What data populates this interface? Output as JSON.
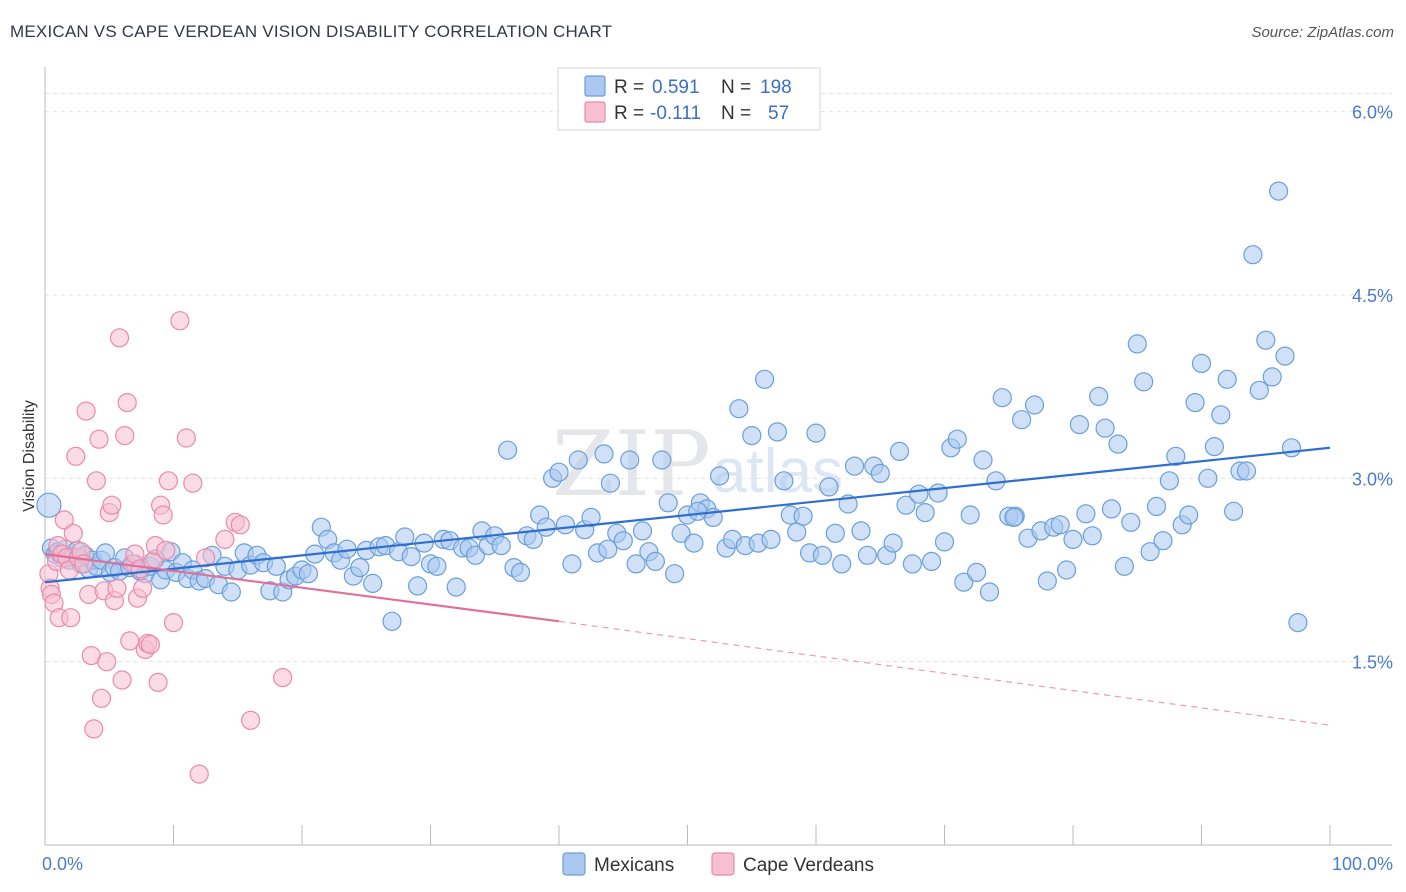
{
  "title": "MEXICAN VS CAPE VERDEAN VISION DISABILITY CORRELATION CHART",
  "source": "Source: ZipAtlas.com",
  "watermark": {
    "zip": "ZIP",
    "atlas": "atlas"
  },
  "colors": {
    "blue_fill": "#aac8f0",
    "blue_stroke": "#6a9fd9",
    "blue_line": "#2e6fcf",
    "pink_fill": "#f7bfd2",
    "pink_stroke": "#e98aa9",
    "pink_line": "#e0709a",
    "tick_text": "#4a7cc9",
    "grid": "#e2e2e2"
  },
  "legend": {
    "rows": [
      {
        "r_label": "R =",
        "r_value": "0.591",
        "n_label": "N =",
        "n_value": "198"
      },
      {
        "r_label": "R =",
        "r_value": "-0.111",
        "n_label": "N =",
        "n_value": "57"
      }
    ]
  },
  "bottom_legend": [
    "Mexicans",
    "Cape Verdeans"
  ],
  "chart_data": {
    "type": "scatter",
    "title": "MEXICAN VS CAPE VERDEAN VISION DISABILITY CORRELATION CHART",
    "xlabel": "",
    "ylabel": "Vision Disability",
    "xlim": [
      0,
      100
    ],
    "ylim": [
      0.0,
      6.3
    ],
    "x_tick_labels": [
      {
        "value": 0,
        "label": "0.0%"
      },
      {
        "value": 100,
        "label": "100.0%"
      }
    ],
    "y_ticks": [
      {
        "value": 1.5,
        "label": "1.5%"
      },
      {
        "value": 3.0,
        "label": "3.0%"
      },
      {
        "value": 4.5,
        "label": "4.5%"
      },
      {
        "value": 6.0,
        "label": "6.0%"
      }
    ],
    "grid": true,
    "legend_position": "top-center",
    "series": [
      {
        "name": "Mexicans",
        "R": 0.591,
        "N": 198,
        "trend": {
          "x": [
            0,
            100
          ],
          "y": [
            2.15,
            3.25
          ],
          "style": "solid"
        },
        "points": [
          [
            0.3,
            2.78
          ],
          [
            0.5,
            2.43
          ],
          [
            0.8,
            2.38
          ],
          [
            1.0,
            2.4
          ],
          [
            1.3,
            2.35
          ],
          [
            1.6,
            2.42
          ],
          [
            1.9,
            2.33
          ],
          [
            2.2,
            2.36
          ],
          [
            2.5,
            2.41
          ],
          [
            2.8,
            2.3
          ],
          [
            3.1,
            2.37
          ],
          [
            3.4,
            2.26
          ],
          [
            3.7,
            2.33
          ],
          [
            4.0,
            2.28
          ],
          [
            4.4,
            2.33
          ],
          [
            4.7,
            2.39
          ],
          [
            5.1,
            2.23
          ],
          [
            5.4,
            2.27
          ],
          [
            5.8,
            2.24
          ],
          [
            6.2,
            2.35
          ],
          [
            6.6,
            2.27
          ],
          [
            7.0,
            2.3
          ],
          [
            7.4,
            2.24
          ],
          [
            7.8,
            2.22
          ],
          [
            8.2,
            2.28
          ],
          [
            8.6,
            2.34
          ],
          [
            9.0,
            2.17
          ],
          [
            9.4,
            2.25
          ],
          [
            9.8,
            2.4
          ],
          [
            10.2,
            2.23
          ],
          [
            10.7,
            2.31
          ],
          [
            11.1,
            2.18
          ],
          [
            11.5,
            2.25
          ],
          [
            12.0,
            2.16
          ],
          [
            12.5,
            2.18
          ],
          [
            13.0,
            2.37
          ],
          [
            13.5,
            2.13
          ],
          [
            14.0,
            2.28
          ],
          [
            14.5,
            2.07
          ],
          [
            15.0,
            2.25
          ],
          [
            15.5,
            2.39
          ],
          [
            16.0,
            2.29
          ],
          [
            16.5,
            2.37
          ],
          [
            17.0,
            2.31
          ],
          [
            17.5,
            2.08
          ],
          [
            18.0,
            2.28
          ],
          [
            18.5,
            2.07
          ],
          [
            19.0,
            2.17
          ],
          [
            19.5,
            2.2
          ],
          [
            20.0,
            2.25
          ],
          [
            20.5,
            2.22
          ],
          [
            21.0,
            2.38
          ],
          [
            21.5,
            2.6
          ],
          [
            22.0,
            2.5
          ],
          [
            22.5,
            2.39
          ],
          [
            23.0,
            2.33
          ],
          [
            23.5,
            2.42
          ],
          [
            24.0,
            2.2
          ],
          [
            24.5,
            2.27
          ],
          [
            25.0,
            2.41
          ],
          [
            25.5,
            2.14
          ],
          [
            26.0,
            2.44
          ],
          [
            26.5,
            2.45
          ],
          [
            27.0,
            1.83
          ],
          [
            27.5,
            2.4
          ],
          [
            28.0,
            2.52
          ],
          [
            28.5,
            2.36
          ],
          [
            29.0,
            2.12
          ],
          [
            29.5,
            2.47
          ],
          [
            30.0,
            2.3
          ],
          [
            30.5,
            2.28
          ],
          [
            31.0,
            2.5
          ],
          [
            31.5,
            2.49
          ],
          [
            32.0,
            2.11
          ],
          [
            32.5,
            2.43
          ],
          [
            33.0,
            2.43
          ],
          [
            33.5,
            2.37
          ],
          [
            34.0,
            2.57
          ],
          [
            34.5,
            2.45
          ],
          [
            35.0,
            2.53
          ],
          [
            35.5,
            2.45
          ],
          [
            36.0,
            3.23
          ],
          [
            36.5,
            2.27
          ],
          [
            37.0,
            2.23
          ],
          [
            37.5,
            2.53
          ],
          [
            38.0,
            2.5
          ],
          [
            38.5,
            2.7
          ],
          [
            39.0,
            2.6
          ],
          [
            39.5,
            3.0
          ],
          [
            40.0,
            3.05
          ],
          [
            40.5,
            2.62
          ],
          [
            41.0,
            2.3
          ],
          [
            41.5,
            3.15
          ],
          [
            42.0,
            2.58
          ],
          [
            42.5,
            2.68
          ],
          [
            43.0,
            2.39
          ],
          [
            43.5,
            3.2
          ],
          [
            44.0,
            2.96
          ],
          [
            44.5,
            2.55
          ],
          [
            45.0,
            2.49
          ],
          [
            45.5,
            3.15
          ],
          [
            46.0,
            2.3
          ],
          [
            46.5,
            2.57
          ],
          [
            47.0,
            2.4
          ],
          [
            47.5,
            2.32
          ],
          [
            48.0,
            3.15
          ],
          [
            48.5,
            2.8
          ],
          [
            49.0,
            2.22
          ],
          [
            49.5,
            2.55
          ],
          [
            50.0,
            2.7
          ],
          [
            50.5,
            2.47
          ],
          [
            51.0,
            2.8
          ],
          [
            51.5,
            2.75
          ],
          [
            52.0,
            2.68
          ],
          [
            52.5,
            3.02
          ],
          [
            53.0,
            2.43
          ],
          [
            53.5,
            2.5
          ],
          [
            54.0,
            3.57
          ],
          [
            54.5,
            2.45
          ],
          [
            55.0,
            3.35
          ],
          [
            55.5,
            2.47
          ],
          [
            56.0,
            3.81
          ],
          [
            56.5,
            2.5
          ],
          [
            57.0,
            3.38
          ],
          [
            57.5,
            2.98
          ],
          [
            58.0,
            2.7
          ],
          [
            58.5,
            2.56
          ],
          [
            59.0,
            2.69
          ],
          [
            59.5,
            2.39
          ],
          [
            60.0,
            3.37
          ],
          [
            60.5,
            2.37
          ],
          [
            61.0,
            2.93
          ],
          [
            61.5,
            2.55
          ],
          [
            62.0,
            2.3
          ],
          [
            62.5,
            2.79
          ],
          [
            63.0,
            3.1
          ],
          [
            63.5,
            2.57
          ],
          [
            64.0,
            2.37
          ],
          [
            64.5,
            3.1
          ],
          [
            65.0,
            3.04
          ],
          [
            65.5,
            2.37
          ],
          [
            66.0,
            2.47
          ],
          [
            66.5,
            3.22
          ],
          [
            67.0,
            2.78
          ],
          [
            67.5,
            2.3
          ],
          [
            68.0,
            2.87
          ],
          [
            68.5,
            2.72
          ],
          [
            69.0,
            2.32
          ],
          [
            69.5,
            2.88
          ],
          [
            70.0,
            2.48
          ],
          [
            70.5,
            3.25
          ],
          [
            71.0,
            3.32
          ],
          [
            71.5,
            2.15
          ],
          [
            72.0,
            2.7
          ],
          [
            72.5,
            2.23
          ],
          [
            73.0,
            3.15
          ],
          [
            73.5,
            2.07
          ],
          [
            74.0,
            2.98
          ],
          [
            74.5,
            3.66
          ],
          [
            75.0,
            2.69
          ],
          [
            75.5,
            2.69
          ],
          [
            76.0,
            3.48
          ],
          [
            76.5,
            2.51
          ],
          [
            77.0,
            3.6
          ],
          [
            77.5,
            2.57
          ],
          [
            78.0,
            2.16
          ],
          [
            78.5,
            2.6
          ],
          [
            79.0,
            2.62
          ],
          [
            79.5,
            2.25
          ],
          [
            80.0,
            2.5
          ],
          [
            80.5,
            3.44
          ],
          [
            81.0,
            2.71
          ],
          [
            81.5,
            2.53
          ],
          [
            82.0,
            3.67
          ],
          [
            82.5,
            3.41
          ],
          [
            83.0,
            2.75
          ],
          [
            83.5,
            3.28
          ],
          [
            84.0,
            2.28
          ],
          [
            84.5,
            2.64
          ],
          [
            85.0,
            4.1
          ],
          [
            85.5,
            3.79
          ],
          [
            86.0,
            2.4
          ],
          [
            86.5,
            2.77
          ],
          [
            87.0,
            2.49
          ],
          [
            87.5,
            2.98
          ],
          [
            88.0,
            3.18
          ],
          [
            88.5,
            2.62
          ],
          [
            89.0,
            2.7
          ],
          [
            89.5,
            3.62
          ],
          [
            90.0,
            3.94
          ],
          [
            90.5,
            3.0
          ],
          [
            91.0,
            3.26
          ],
          [
            91.5,
            3.52
          ],
          [
            92.0,
            3.81
          ],
          [
            92.5,
            2.73
          ],
          [
            93.0,
            3.06
          ],
          [
            93.5,
            3.06
          ],
          [
            94.0,
            4.83
          ],
          [
            94.5,
            3.72
          ],
          [
            95.0,
            4.13
          ],
          [
            95.5,
            3.83
          ],
          [
            96.0,
            5.35
          ],
          [
            96.5,
            4.0
          ],
          [
            97.0,
            3.25
          ],
          [
            97.5,
            1.82
          ],
          [
            43.8,
            2.42
          ],
          [
            50.8,
            2.73
          ],
          [
            75.4,
            2.68
          ]
        ]
      },
      {
        "name": "Cape Verdeans",
        "R": -0.111,
        "N": 57,
        "trend": {
          "x": [
            0,
            40
          ],
          "y": [
            2.38,
            1.83
          ],
          "style": "solid",
          "extension": {
            "x": [
              40,
              100
            ],
            "y": [
              1.83,
              0.98
            ],
            "style": "dashed"
          }
        },
        "points": [
          [
            0.3,
            2.22
          ],
          [
            0.4,
            2.1
          ],
          [
            0.5,
            2.05
          ],
          [
            0.7,
            1.98
          ],
          [
            0.9,
            2.32
          ],
          [
            1.0,
            2.45
          ],
          [
            1.1,
            1.86
          ],
          [
            1.3,
            2.38
          ],
          [
            1.5,
            2.66
          ],
          [
            1.7,
            2.35
          ],
          [
            1.9,
            2.25
          ],
          [
            2.0,
            1.86
          ],
          [
            2.2,
            2.55
          ],
          [
            2.4,
            3.18
          ],
          [
            2.6,
            2.35
          ],
          [
            2.8,
            2.4
          ],
          [
            3.0,
            2.3
          ],
          [
            3.2,
            3.55
          ],
          [
            3.4,
            2.05
          ],
          [
            3.6,
            1.55
          ],
          [
            3.8,
            0.95
          ],
          [
            4.0,
            2.98
          ],
          [
            4.2,
            3.32
          ],
          [
            4.4,
            1.2
          ],
          [
            4.6,
            2.08
          ],
          [
            4.8,
            1.5
          ],
          [
            5.0,
            2.72
          ],
          [
            5.2,
            2.78
          ],
          [
            5.4,
            2.0
          ],
          [
            5.6,
            2.1
          ],
          [
            5.8,
            4.15
          ],
          [
            6.0,
            1.35
          ],
          [
            6.2,
            3.35
          ],
          [
            6.4,
            3.62
          ],
          [
            6.6,
            1.67
          ],
          [
            6.8,
            2.3
          ],
          [
            7.0,
            2.38
          ],
          [
            7.2,
            2.02
          ],
          [
            7.4,
            2.26
          ],
          [
            7.6,
            2.1
          ],
          [
            7.8,
            1.6
          ],
          [
            8.0,
            1.65
          ],
          [
            8.2,
            1.64
          ],
          [
            8.4,
            2.32
          ],
          [
            8.6,
            2.45
          ],
          [
            8.8,
            1.33
          ],
          [
            9.0,
            2.78
          ],
          [
            9.2,
            2.7
          ],
          [
            9.4,
            2.41
          ],
          [
            9.6,
            2.98
          ],
          [
            10.0,
            1.82
          ],
          [
            10.5,
            4.29
          ],
          [
            11.0,
            3.33
          ],
          [
            11.5,
            2.96
          ],
          [
            12.0,
            0.58
          ],
          [
            12.5,
            2.35
          ],
          [
            14.0,
            2.5
          ],
          [
            14.8,
            2.64
          ],
          [
            15.2,
            2.62
          ],
          [
            16.0,
            1.02
          ],
          [
            18.5,
            1.37
          ]
        ]
      }
    ]
  }
}
